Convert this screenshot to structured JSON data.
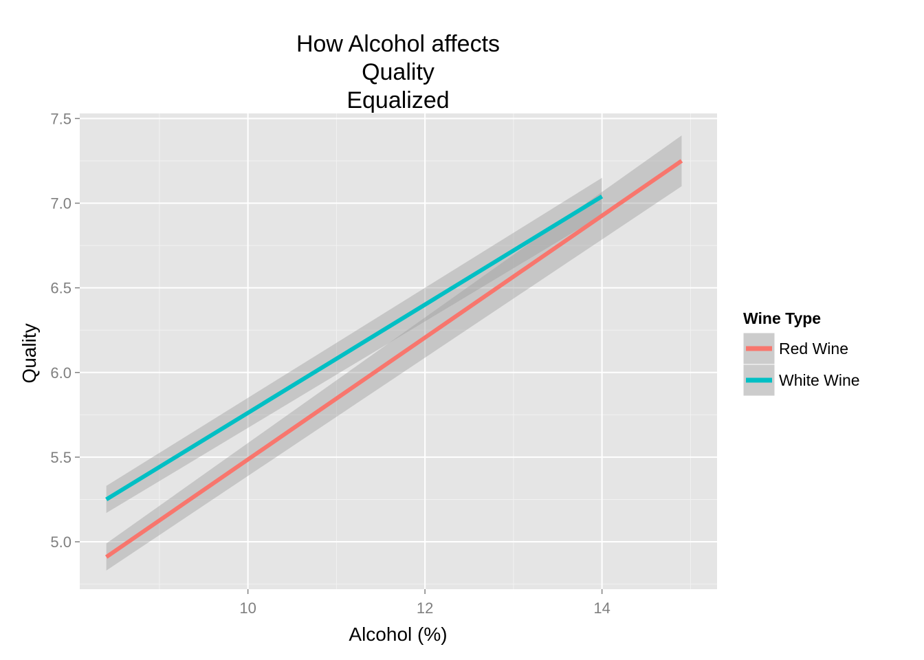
{
  "chart_data": {
    "type": "line",
    "title_lines": [
      "How Alcohol affects",
      "Quality",
      "Equalized"
    ],
    "xlabel": "Alcohol (%)",
    "ylabel": "Quality",
    "xlim": [
      8.1,
      15.3
    ],
    "ylim": [
      4.72,
      7.53
    ],
    "x_ticks": [
      10,
      12,
      14
    ],
    "x_tick_labels": [
      "10",
      "12",
      "14"
    ],
    "y_ticks": [
      5.0,
      5.5,
      6.0,
      6.5,
      7.0,
      7.5
    ],
    "y_tick_labels": [
      "5.0",
      "5.5",
      "6.0",
      "6.5",
      "7.0",
      "7.5"
    ],
    "grid": true,
    "legend": {
      "title": "Wine Type",
      "position": "right"
    },
    "series": [
      {
        "name": "Red Wine",
        "color": "#F8766D",
        "x": [
          8.4,
          14.9
        ],
        "y": [
          4.91,
          7.25
        ],
        "ci_halfwidth_start": 0.08,
        "ci_halfwidth_end": 0.15
      },
      {
        "name": "White Wine",
        "color": "#00BFC4",
        "x": [
          8.4,
          14.0
        ],
        "y": [
          5.25,
          7.04
        ],
        "ci_halfwidth_start": 0.08,
        "ci_halfwidth_end": 0.11
      }
    ]
  }
}
